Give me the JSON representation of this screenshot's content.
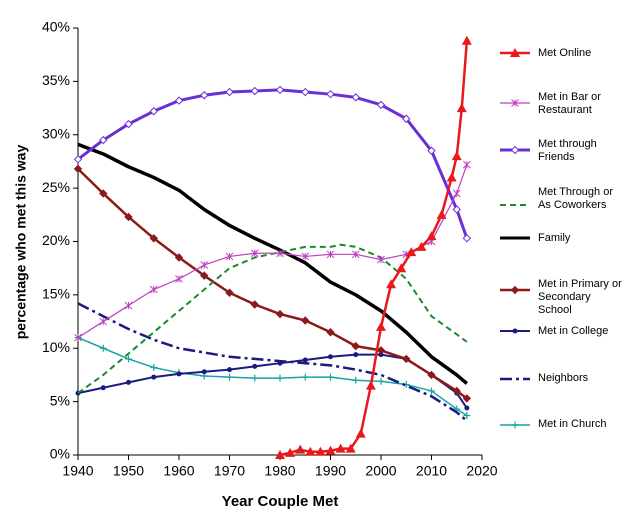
{
  "chart_data": {
    "type": "line",
    "x_label": "Year Couple Met",
    "y_label": "percentage who met this way",
    "xlim": [
      1940,
      2020
    ],
    "xticks": [
      1940,
      1950,
      1960,
      1970,
      1980,
      1990,
      2000,
      2010,
      2020
    ],
    "ylim": [
      0,
      40
    ],
    "yticks": [
      {
        "value": 0,
        "label": "0%"
      },
      {
        "value": 5,
        "label": "5%"
      },
      {
        "value": 10,
        "label": "10%"
      },
      {
        "value": 15,
        "label": "15%"
      },
      {
        "value": 20,
        "label": "20%"
      },
      {
        "value": 25,
        "label": "25%"
      },
      {
        "value": 30,
        "label": "30%"
      },
      {
        "value": 35,
        "label": "35%"
      },
      {
        "value": 40,
        "label": "40%"
      }
    ],
    "grid": false,
    "legend": "right",
    "series": [
      {
        "name": "Met Online",
        "color": "#e8191c",
        "width": 2.5,
        "dash": "solid",
        "marker": "triangle",
        "x": [
          1980,
          1982,
          1984,
          1986,
          1988,
          1990,
          1992,
          1994,
          1996,
          1998,
          2000,
          2002,
          2004,
          2006,
          2008,
          2010,
          2012,
          2014,
          2015,
          2016,
          2017
        ],
        "values": [
          0,
          0.2,
          0.5,
          0.3,
          0.3,
          0.4,
          0.6,
          0.6,
          2,
          6.5,
          12,
          16,
          17.5,
          19,
          19.5,
          20.5,
          22.5,
          26,
          28,
          32.5,
          38.8
        ]
      },
      {
        "name": "Met in Bar or Restaurant",
        "color": "#c03fc0",
        "width": 1.2,
        "dash": "solid",
        "marker": "asterisk",
        "x": [
          1940,
          1945,
          1950,
          1955,
          1960,
          1965,
          1970,
          1975,
          1980,
          1985,
          1990,
          1995,
          2000,
          2005,
          2010,
          2015,
          2017
        ],
        "values": [
          11,
          12.5,
          14,
          15.5,
          16.5,
          17.8,
          18.6,
          18.9,
          18.9,
          18.6,
          18.8,
          18.8,
          18.3,
          18.8,
          20,
          24.5,
          27.2
        ]
      },
      {
        "name": "Met through Friends",
        "color": "#6a2fd6",
        "width": 3,
        "dash": "solid",
        "marker": "diamond-open",
        "x": [
          1940,
          1945,
          1950,
          1955,
          1960,
          1965,
          1970,
          1975,
          1980,
          1985,
          1990,
          1995,
          2000,
          2005,
          2010,
          2015,
          2017
        ],
        "values": [
          27.7,
          29.5,
          31,
          32.2,
          33.2,
          33.7,
          34,
          34.1,
          34.2,
          34,
          33.8,
          33.5,
          32.8,
          31.5,
          28.5,
          23,
          20.3
        ]
      },
      {
        "name": "Met Through or As Coworkers",
        "color": "#1b8a2a",
        "width": 2,
        "dash": "6 4",
        "marker": "none",
        "x": [
          1940,
          1945,
          1950,
          1955,
          1960,
          1965,
          1970,
          1975,
          1980,
          1985,
          1990,
          1992,
          1995,
          2000,
          2005,
          2010,
          2015,
          2017
        ],
        "values": [
          5.8,
          7.5,
          9.5,
          11.5,
          13.5,
          15.5,
          17.5,
          18.5,
          19,
          19.5,
          19.5,
          19.7,
          19.5,
          18.5,
          16.5,
          13,
          11.3,
          10.6
        ]
      },
      {
        "name": "Family",
        "color": "#000000",
        "width": 3.5,
        "dash": "solid",
        "marker": "none",
        "x": [
          1940,
          1945,
          1950,
          1955,
          1960,
          1965,
          1970,
          1975,
          1980,
          1985,
          1990,
          1995,
          2000,
          2005,
          2010,
          2015,
          2017
        ],
        "values": [
          29.1,
          28.2,
          27,
          26,
          24.8,
          23,
          21.5,
          20.3,
          19.2,
          18,
          16.2,
          15,
          13.5,
          11.5,
          9.2,
          7.5,
          6.7
        ]
      },
      {
        "name": "Met in Primary or Secondary School",
        "color": "#8b1a1a",
        "width": 2.5,
        "dash": "solid",
        "marker": "diamond",
        "x": [
          1940,
          1945,
          1950,
          1955,
          1960,
          1965,
          1970,
          1975,
          1980,
          1985,
          1990,
          1995,
          2000,
          2005,
          2010,
          2015,
          2017
        ],
        "values": [
          26.8,
          24.5,
          22.3,
          20.3,
          18.5,
          16.8,
          15.2,
          14.1,
          13.2,
          12.6,
          11.5,
          10.2,
          9.8,
          9,
          7.5,
          6,
          5.3
        ]
      },
      {
        "name": "Met in College",
        "color": "#1a1a80",
        "width": 2,
        "dash": "solid",
        "marker": "circle",
        "x": [
          1940,
          1945,
          1950,
          1955,
          1960,
          1965,
          1970,
          1975,
          1980,
          1985,
          1990,
          1995,
          2000,
          2005,
          2010,
          2015,
          2017
        ],
        "values": [
          5.8,
          6.3,
          6.8,
          7.3,
          7.6,
          7.8,
          8,
          8.3,
          8.6,
          8.9,
          9.2,
          9.4,
          9.4,
          9,
          7.5,
          5.8,
          4.4
        ]
      },
      {
        "name": "Neighbors",
        "color": "#1a1a80",
        "width": 2.5,
        "dash": "12 4 3 4",
        "marker": "none",
        "x": [
          1940,
          1945,
          1950,
          1955,
          1960,
          1965,
          1970,
          1975,
          1980,
          1985,
          1990,
          1995,
          2000,
          2005,
          2010,
          2015,
          2017
        ],
        "values": [
          14.2,
          13,
          11.8,
          10.8,
          10,
          9.6,
          9.2,
          9,
          8.8,
          8.6,
          8.4,
          8,
          7.5,
          6.5,
          5.5,
          4,
          3.2
        ]
      },
      {
        "name": "Met in Church",
        "color": "#1aa3a3",
        "width": 1.5,
        "dash": "solid",
        "marker": "plus",
        "x": [
          1940,
          1945,
          1950,
          1955,
          1960,
          1965,
          1970,
          1975,
          1980,
          1985,
          1990,
          1995,
          2000,
          2005,
          2010,
          2015,
          2017
        ],
        "values": [
          11,
          10,
          9,
          8.2,
          7.7,
          7.4,
          7.3,
          7.2,
          7.2,
          7.3,
          7.3,
          7,
          6.9,
          6.6,
          6,
          4.3,
          3.7
        ]
      }
    ]
  }
}
